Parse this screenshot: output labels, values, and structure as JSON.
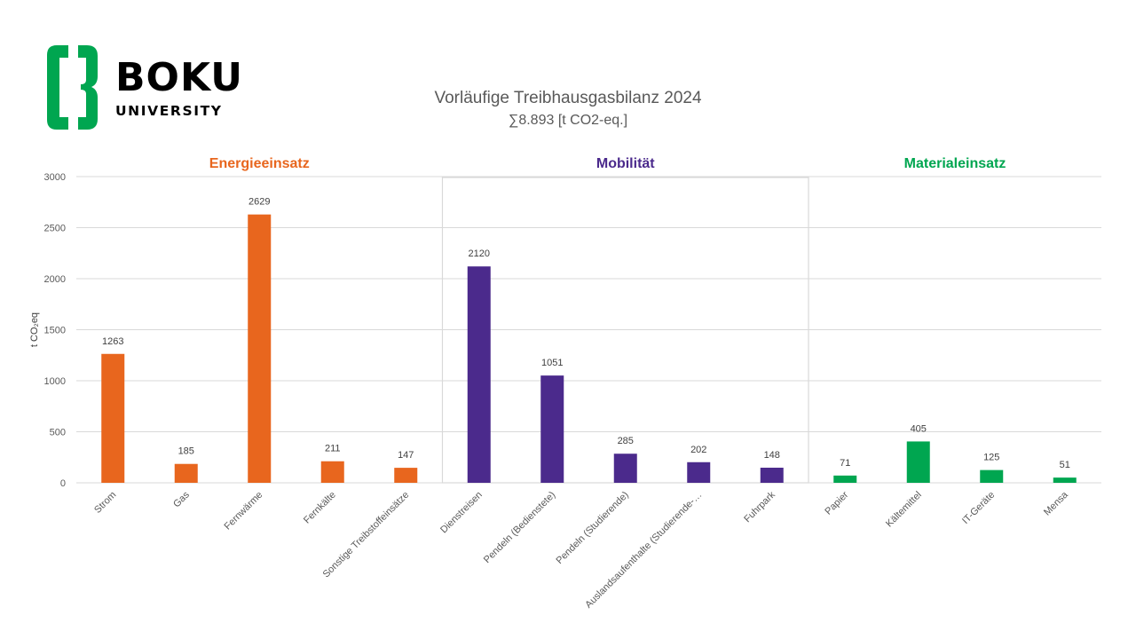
{
  "logo": {
    "word": "BOKU",
    "subword": "UNIVERSITY"
  },
  "chart_data": {
    "type": "bar",
    "title": "Vorläufige Treibhausgasbilanz 2024",
    "subtitle": "∑8.893 [t CO2-eq.]",
    "ylabel": "t CO₂eq",
    "ylim": [
      0,
      3000
    ],
    "yticks": [
      0,
      500,
      1000,
      1500,
      2000,
      2500,
      3000
    ],
    "grid": true,
    "legend": "none",
    "groups": [
      {
        "name": "Energieeinsatz",
        "color": "#E8661E",
        "start": 0,
        "end": 4
      },
      {
        "name": "Mobilität",
        "color": "#4B2A8C",
        "start": 5,
        "end": 9
      },
      {
        "name": "Materialeinsatz",
        "color": "#00A650",
        "start": 10,
        "end": 13
      }
    ],
    "categories": [
      "Strom",
      "Gas",
      "Fernwärme",
      "Fernkälte",
      "Sonstige Treibstoffeinsätze",
      "Dienstreisen",
      "Pendeln (Bedienstete)",
      "Pendeln (Studierende)",
      "Auslandsaufenthalte (Studierende-…",
      "Fuhrpark",
      "Papier",
      "Kältemittel",
      "IT-Geräte",
      "Mensa"
    ],
    "values": [
      1263,
      185,
      2629,
      211,
      147,
      2120,
      1051,
      285,
      202,
      148,
      71,
      405,
      125,
      51
    ],
    "colors": {
      "energie": "#E8661E",
      "mobilitaet": "#4B2A8C",
      "material": "#00A650",
      "gridline": "#D9D9D9"
    }
  }
}
